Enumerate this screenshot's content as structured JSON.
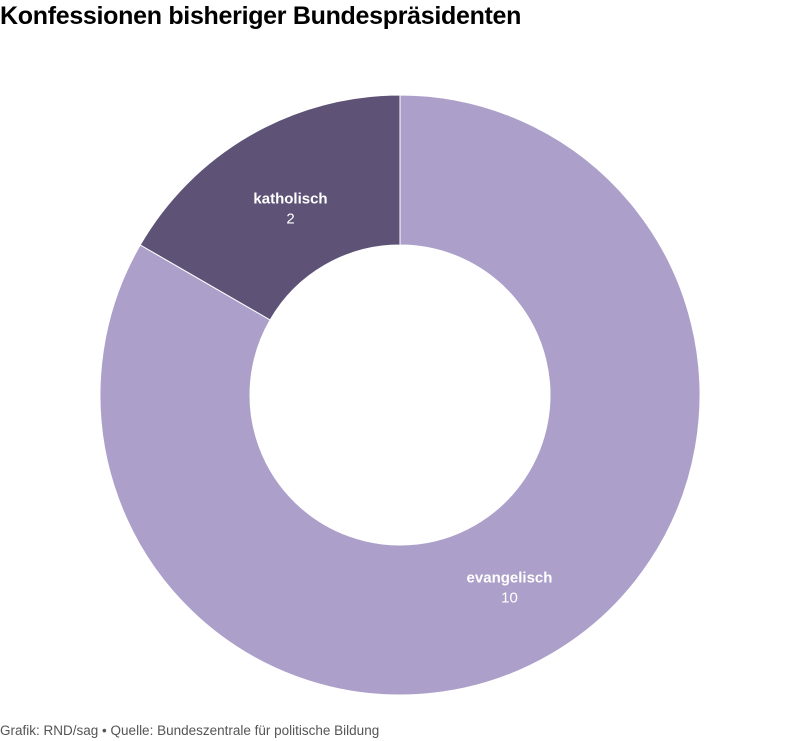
{
  "chart_data": {
    "type": "pie",
    "variant": "donut",
    "title": "Konfessionen bisheriger Bundespräsidenten",
    "categories": [
      "katholisch",
      "evangelisch"
    ],
    "values": [
      2,
      10
    ],
    "colors": [
      "#5e5377",
      "#aca0ca"
    ],
    "legend": "none"
  },
  "footer": {
    "credit": "Grafik: RND/sag",
    "separator": "•",
    "source": "Quelle: Bundeszentrale für politische Bildung"
  }
}
